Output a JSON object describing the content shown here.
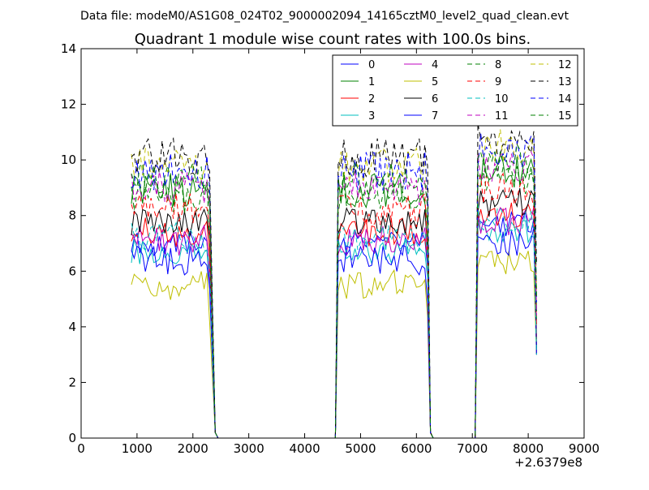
{
  "page": {
    "suptitle": "Data file: modeM0/AS1G08_024T02_9000002094_14165cztM0_level2_quad_clean.evt"
  },
  "chart_data": {
    "type": "line",
    "title": "Quadrant 1 module wise count rates with 100.0s bins.",
    "xlabel": "",
    "ylabel": "",
    "x_offset_label": "+2.6379e8",
    "xlim": [
      0,
      9000
    ],
    "ylim": [
      0,
      14
    ],
    "xticks": [
      "0",
      "1000",
      "2000",
      "3000",
      "4000",
      "5000",
      "6000",
      "7000",
      "8000",
      "9000"
    ],
    "yticks": [
      "0",
      "2",
      "4",
      "6",
      "8",
      "10",
      "12",
      "14"
    ],
    "grid": false,
    "legend_position": "top-right",
    "segments": [
      {
        "x_start": 900,
        "x_end": 2300,
        "x_step": 50
      },
      {
        "x_start": 4600,
        "x_end": 6200,
        "x_step": 50
      },
      {
        "x_start": 7100,
        "x_end": 8150,
        "x_step": 50
      }
    ],
    "zero_x": [
      2450,
      6300,
      4550,
      7050
    ],
    "series": [
      {
        "name": "0",
        "color": "#0000ff",
        "dash": "solid",
        "level": 7.0,
        "noise": 0.25
      },
      {
        "name": "1",
        "color": "#008000",
        "dash": "solid",
        "level": 8.9,
        "noise": 0.35
      },
      {
        "name": "2",
        "color": "#ff0000",
        "dash": "solid",
        "level": 7.4,
        "noise": 0.3
      },
      {
        "name": "3",
        "color": "#00bfbf",
        "dash": "solid",
        "level": 6.7,
        "noise": 0.25
      },
      {
        "name": "4",
        "color": "#bf00bf",
        "dash": "solid",
        "level": 7.1,
        "noise": 0.3
      },
      {
        "name": "5",
        "color": "#bfbf00",
        "dash": "solid",
        "level": 5.5,
        "noise": 0.3
      },
      {
        "name": "6",
        "color": "#000000",
        "dash": "solid",
        "level": 7.8,
        "noise": 0.3
      },
      {
        "name": "7",
        "color": "#0000ff",
        "dash": "solid",
        "level": 6.4,
        "noise": 0.3
      },
      {
        "name": "8",
        "color": "#008000",
        "dash": "dashed",
        "level": 8.7,
        "noise": 0.35
      },
      {
        "name": "9",
        "color": "#ff0000",
        "dash": "dashed",
        "level": 8.2,
        "noise": 0.35
      },
      {
        "name": "10",
        "color": "#00bfbf",
        "dash": "dashed",
        "level": 7.2,
        "noise": 0.3
      },
      {
        "name": "11",
        "color": "#bf00bf",
        "dash": "dashed",
        "level": 9.0,
        "noise": 0.35
      },
      {
        "name": "12",
        "color": "#bfbf00",
        "dash": "dashed",
        "level": 9.8,
        "noise": 0.35
      },
      {
        "name": "13",
        "color": "#000000",
        "dash": "dashed",
        "level": 10.1,
        "noise": 0.4
      },
      {
        "name": "14",
        "color": "#0000ff",
        "dash": "dashed",
        "level": 9.6,
        "noise": 0.4
      },
      {
        "name": "15",
        "color": "#008000",
        "dash": "dashed",
        "level": 9.3,
        "noise": 0.35
      }
    ]
  }
}
